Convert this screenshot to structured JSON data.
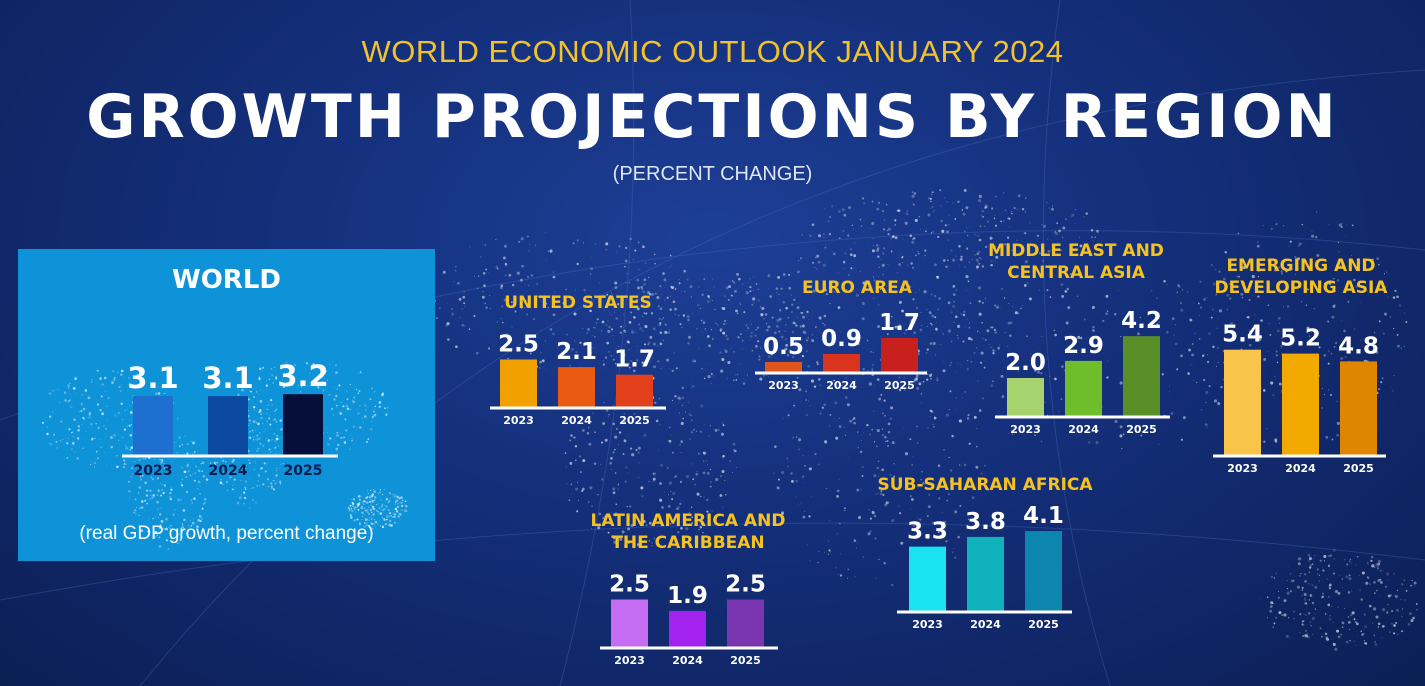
{
  "header": {
    "supertitle": "WORLD ECONOMIC OUTLOOK JANUARY 2024",
    "title": "GROWTH PROJECTIONS BY REGION",
    "subtitle": "(PERCENT CHANGE)"
  },
  "world_panel": {
    "title": "WORLD",
    "note": "(real GDP growth, percent change)",
    "background": "#0e93d8"
  },
  "chart_data": [
    {
      "id": "world",
      "type": "bar",
      "title": "WORLD",
      "categories": [
        "2023",
        "2024",
        "2025"
      ],
      "values": [
        3.1,
        3.1,
        3.2
      ],
      "colors": [
        "#1f6fd1",
        "#0b4aa0",
        "#050f3a"
      ]
    },
    {
      "id": "united-states",
      "type": "bar",
      "title": "UNITED STATES",
      "categories": [
        "2023",
        "2024",
        "2025"
      ],
      "values": [
        2.5,
        2.1,
        1.7
      ],
      "colors": [
        "#f2a000",
        "#ea5a13",
        "#e2401b"
      ]
    },
    {
      "id": "euro-area",
      "type": "bar",
      "title": "EURO AREA",
      "categories": [
        "2023",
        "2024",
        "2025"
      ],
      "values": [
        0.5,
        0.9,
        1.7
      ],
      "colors": [
        "#e0551b",
        "#d8341e",
        "#c8201c"
      ]
    },
    {
      "id": "middle-east",
      "type": "bar",
      "title": "MIDDLE EAST AND CENTRAL ASIA",
      "title_lines": [
        "MIDDLE EAST AND",
        "CENTRAL ASIA"
      ],
      "categories": [
        "2023",
        "2024",
        "2025"
      ],
      "values": [
        2.0,
        2.9,
        4.2
      ],
      "colors": [
        "#a7d36e",
        "#6fbd2a",
        "#5a8f27"
      ]
    },
    {
      "id": "emerging-asia",
      "type": "bar",
      "title": "EMERGING AND DEVELOPING ASIA",
      "title_lines": [
        "EMERGING AND",
        "DEVELOPING ASIA"
      ],
      "categories": [
        "2023",
        "2024",
        "2025"
      ],
      "values": [
        5.4,
        5.2,
        4.8
      ],
      "colors": [
        "#f8c44a",
        "#f2a900",
        "#e08500"
      ]
    },
    {
      "id": "latin-america",
      "type": "bar",
      "title": "LATIN AMERICA AND THE CARIBBEAN",
      "title_lines": [
        "LATIN AMERICA AND",
        "THE CARIBBEAN"
      ],
      "categories": [
        "2023",
        "2024",
        "2025"
      ],
      "values": [
        2.5,
        1.9,
        2.5
      ],
      "colors": [
        "#c46cf2",
        "#a322f0",
        "#7a35b0"
      ]
    },
    {
      "id": "sub-saharan",
      "type": "bar",
      "title": "SUB-SAHARAN AFRICA",
      "categories": [
        "2023",
        "2024",
        "2025"
      ],
      "values": [
        3.3,
        3.8,
        4.1
      ],
      "colors": [
        "#19e3ef",
        "#10b3bb",
        "#0c86ad"
      ]
    }
  ]
}
